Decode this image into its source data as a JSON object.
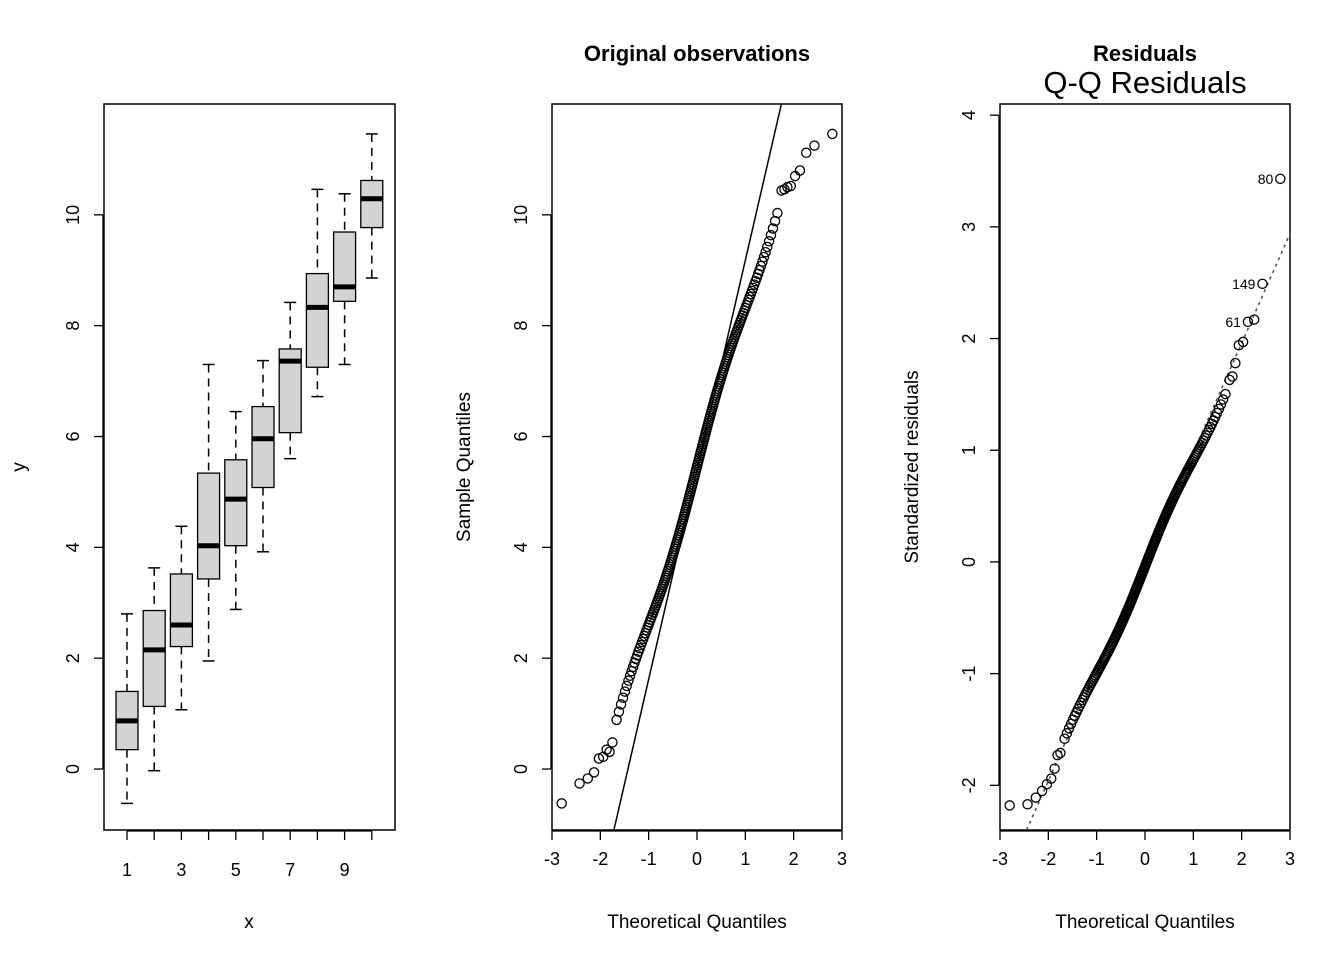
{
  "chart_data": [
    {
      "type": "boxplot",
      "title": "",
      "xlabel": "x",
      "ylabel": "y",
      "categories": [
        "1",
        "2",
        "3",
        "4",
        "5",
        "6",
        "7",
        "8",
        "9",
        "10"
      ],
      "x_tick_labels": [
        "1",
        "3",
        "5",
        "7",
        "9"
      ],
      "y_ticks": [
        "0",
        "2",
        "4",
        "6",
        "8",
        "10"
      ],
      "ylim": [
        -1.1,
        12.0
      ],
      "box_fill": "#d3d3d3",
      "boxes": [
        {
          "min": -0.62,
          "q1": 0.35,
          "median": 0.87,
          "q3": 1.4,
          "max": 2.8
        },
        {
          "min": -0.03,
          "q1": 1.13,
          "median": 2.15,
          "q3": 2.86,
          "max": 3.63
        },
        {
          "min": 1.07,
          "q1": 2.21,
          "median": 2.6,
          "q3": 3.52,
          "max": 4.38
        },
        {
          "min": 1.95,
          "q1": 3.43,
          "median": 4.03,
          "q3": 5.34,
          "max": 7.3
        },
        {
          "min": 2.88,
          "q1": 4.03,
          "median": 4.87,
          "q3": 5.58,
          "max": 6.45
        },
        {
          "min": 3.92,
          "q1": 5.08,
          "median": 5.96,
          "q3": 6.54,
          "max": 7.37
        },
        {
          "min": 5.6,
          "q1": 6.07,
          "median": 7.36,
          "q3": 7.58,
          "max": 8.42
        },
        {
          "min": 6.72,
          "q1": 7.25,
          "median": 8.33,
          "q3": 8.94,
          "max": 10.46
        },
        {
          "min": 7.3,
          "q1": 8.44,
          "median": 8.7,
          "q3": 9.69,
          "max": 10.38
        },
        {
          "min": 8.86,
          "q1": 9.77,
          "median": 10.29,
          "q3": 10.62,
          "max": 11.46
        }
      ]
    },
    {
      "type": "qqplot",
      "title": "Original observations",
      "xlabel": "Theoretical Quantiles",
      "ylabel": "Sample Quantiles",
      "x_ticks": [
        "-3",
        "-2",
        "-1",
        "0",
        "1",
        "2",
        "3"
      ],
      "y_ticks": [
        "0",
        "2",
        "4",
        "6",
        "8",
        "10"
      ],
      "xlim": [
        -3.0,
        3.0
      ],
      "ylim": [
        -1.1,
        12.0
      ],
      "ref_line": {
        "intercept": 5.4,
        "slope": 3.78
      },
      "n": 200,
      "low_tail": [
        [
          -2.8,
          -0.62
        ],
        [
          -2.43,
          -0.26
        ],
        [
          -2.26,
          -0.17
        ],
        [
          -2.13,
          -0.06
        ],
        [
          -2.03,
          0.19
        ],
        [
          -1.94,
          0.22
        ],
        [
          -1.87,
          0.35
        ],
        [
          -1.81,
          0.31
        ],
        [
          -1.75,
          0.48
        ]
      ],
      "high_tail": [
        [
          1.75,
          10.44
        ],
        [
          1.81,
          10.46
        ],
        [
          1.87,
          10.5
        ],
        [
          1.94,
          10.52
        ],
        [
          2.03,
          10.7
        ],
        [
          2.13,
          10.8
        ],
        [
          2.26,
          11.12
        ],
        [
          2.43,
          11.25
        ],
        [
          2.8,
          11.46
        ]
      ]
    },
    {
      "type": "qqplot",
      "title": "Residuals",
      "subtitle": "Q-Q Residuals",
      "xlabel": "Theoretical Quantiles",
      "ylabel": "Standardized residuals",
      "x_ticks": [
        "-3",
        "-2",
        "-1",
        "0",
        "1",
        "2",
        "3"
      ],
      "y_ticks": [
        "-2",
        "-1",
        "0",
        "1",
        "2",
        "3",
        "4"
      ],
      "xlim": [
        -3.0,
        3.0
      ],
      "ylim": [
        -2.4,
        4.1
      ],
      "ref_line": {
        "intercept": 0.0,
        "slope": 0.98,
        "style": "dotted"
      },
      "n": 200,
      "low_tail": [
        [
          -2.8,
          -2.18
        ],
        [
          -2.43,
          -2.17
        ],
        [
          -2.26,
          -2.11
        ],
        [
          -2.13,
          -2.05
        ],
        [
          -2.03,
          -1.99
        ],
        [
          -1.94,
          -1.94
        ],
        [
          -1.87,
          -1.85
        ],
        [
          -1.81,
          -1.73
        ],
        [
          -1.75,
          -1.71
        ]
      ],
      "high_tail": [
        [
          1.75,
          1.63
        ],
        [
          1.81,
          1.66
        ],
        [
          1.87,
          1.78
        ],
        [
          1.94,
          1.94
        ],
        [
          2.03,
          1.97
        ],
        [
          2.13,
          2.15
        ],
        [
          2.26,
          2.17
        ],
        [
          2.43,
          2.49
        ],
        [
          2.8,
          3.43
        ]
      ],
      "point_labels": [
        {
          "text": "80",
          "x": 2.8,
          "y": 3.43
        },
        {
          "text": "149",
          "x": 2.43,
          "y": 2.49
        },
        {
          "text": "61",
          "x": 2.13,
          "y": 2.15
        }
      ]
    }
  ]
}
